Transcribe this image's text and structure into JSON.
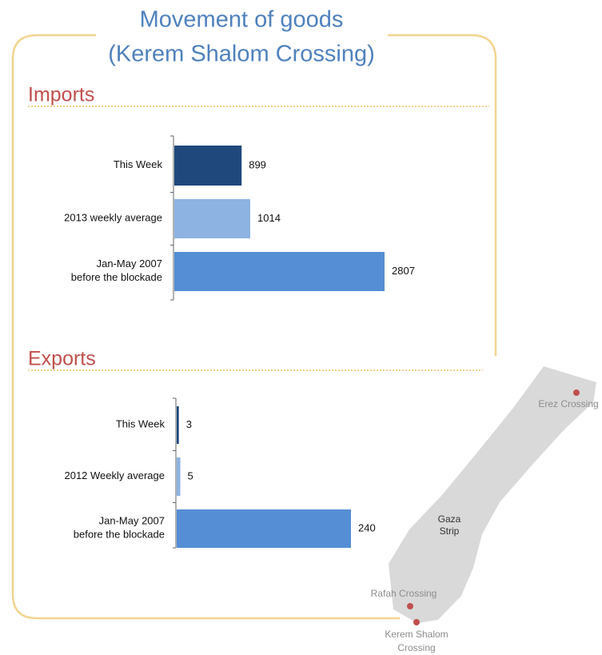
{
  "title": [
    "Movement of goods",
    "(Kerem Shalom Crossing)"
  ],
  "chart_data": [
    {
      "type": "bar",
      "orientation": "horizontal",
      "title": "Imports",
      "categories": [
        "This Week",
        "2013 weekly average",
        "Jan-May 2007\nbefore the blockade"
      ],
      "values": [
        899,
        1014,
        2807
      ],
      "colors": [
        "#1f497d",
        "#8db3e2",
        "#558ed5"
      ]
    },
    {
      "type": "bar",
      "orientation": "horizontal",
      "title": "Exports",
      "categories": [
        "This Week",
        "2012 Weekly average",
        "Jan-May 2007\nbefore the blockade"
      ],
      "values": [
        3,
        5,
        240
      ],
      "colors": [
        "#1f497d",
        "#8db3e2",
        "#558ed5"
      ]
    }
  ],
  "map": {
    "erez": "Erez Crossing",
    "gaza": [
      "Gaza",
      "Strip"
    ],
    "rafah": "Rafah Crossing",
    "kerem": [
      "Kerem Shalom",
      "Crossing"
    ]
  }
}
